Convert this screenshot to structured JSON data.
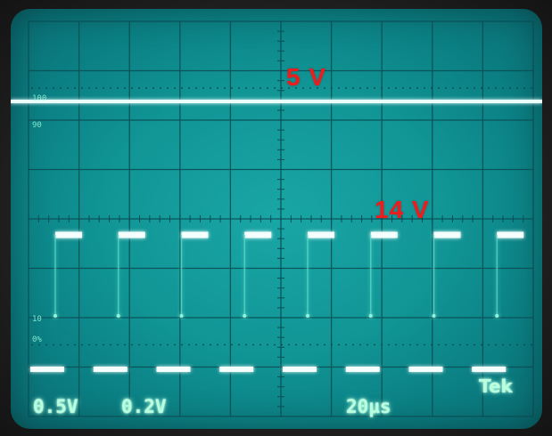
{
  "image": {
    "description_labels": {
      "top_trace_label": "5 V",
      "pulse_trace_label": "14 V"
    },
    "readouts": {
      "ch1_scale": "0.5V",
      "ch2_scale": "0.2V",
      "timebase": "20µs",
      "brand": "Tek"
    },
    "graticule_scale": {
      "top": "100",
      "ninety": "90",
      "ten": "10",
      "zero": "0%"
    }
  }
}
